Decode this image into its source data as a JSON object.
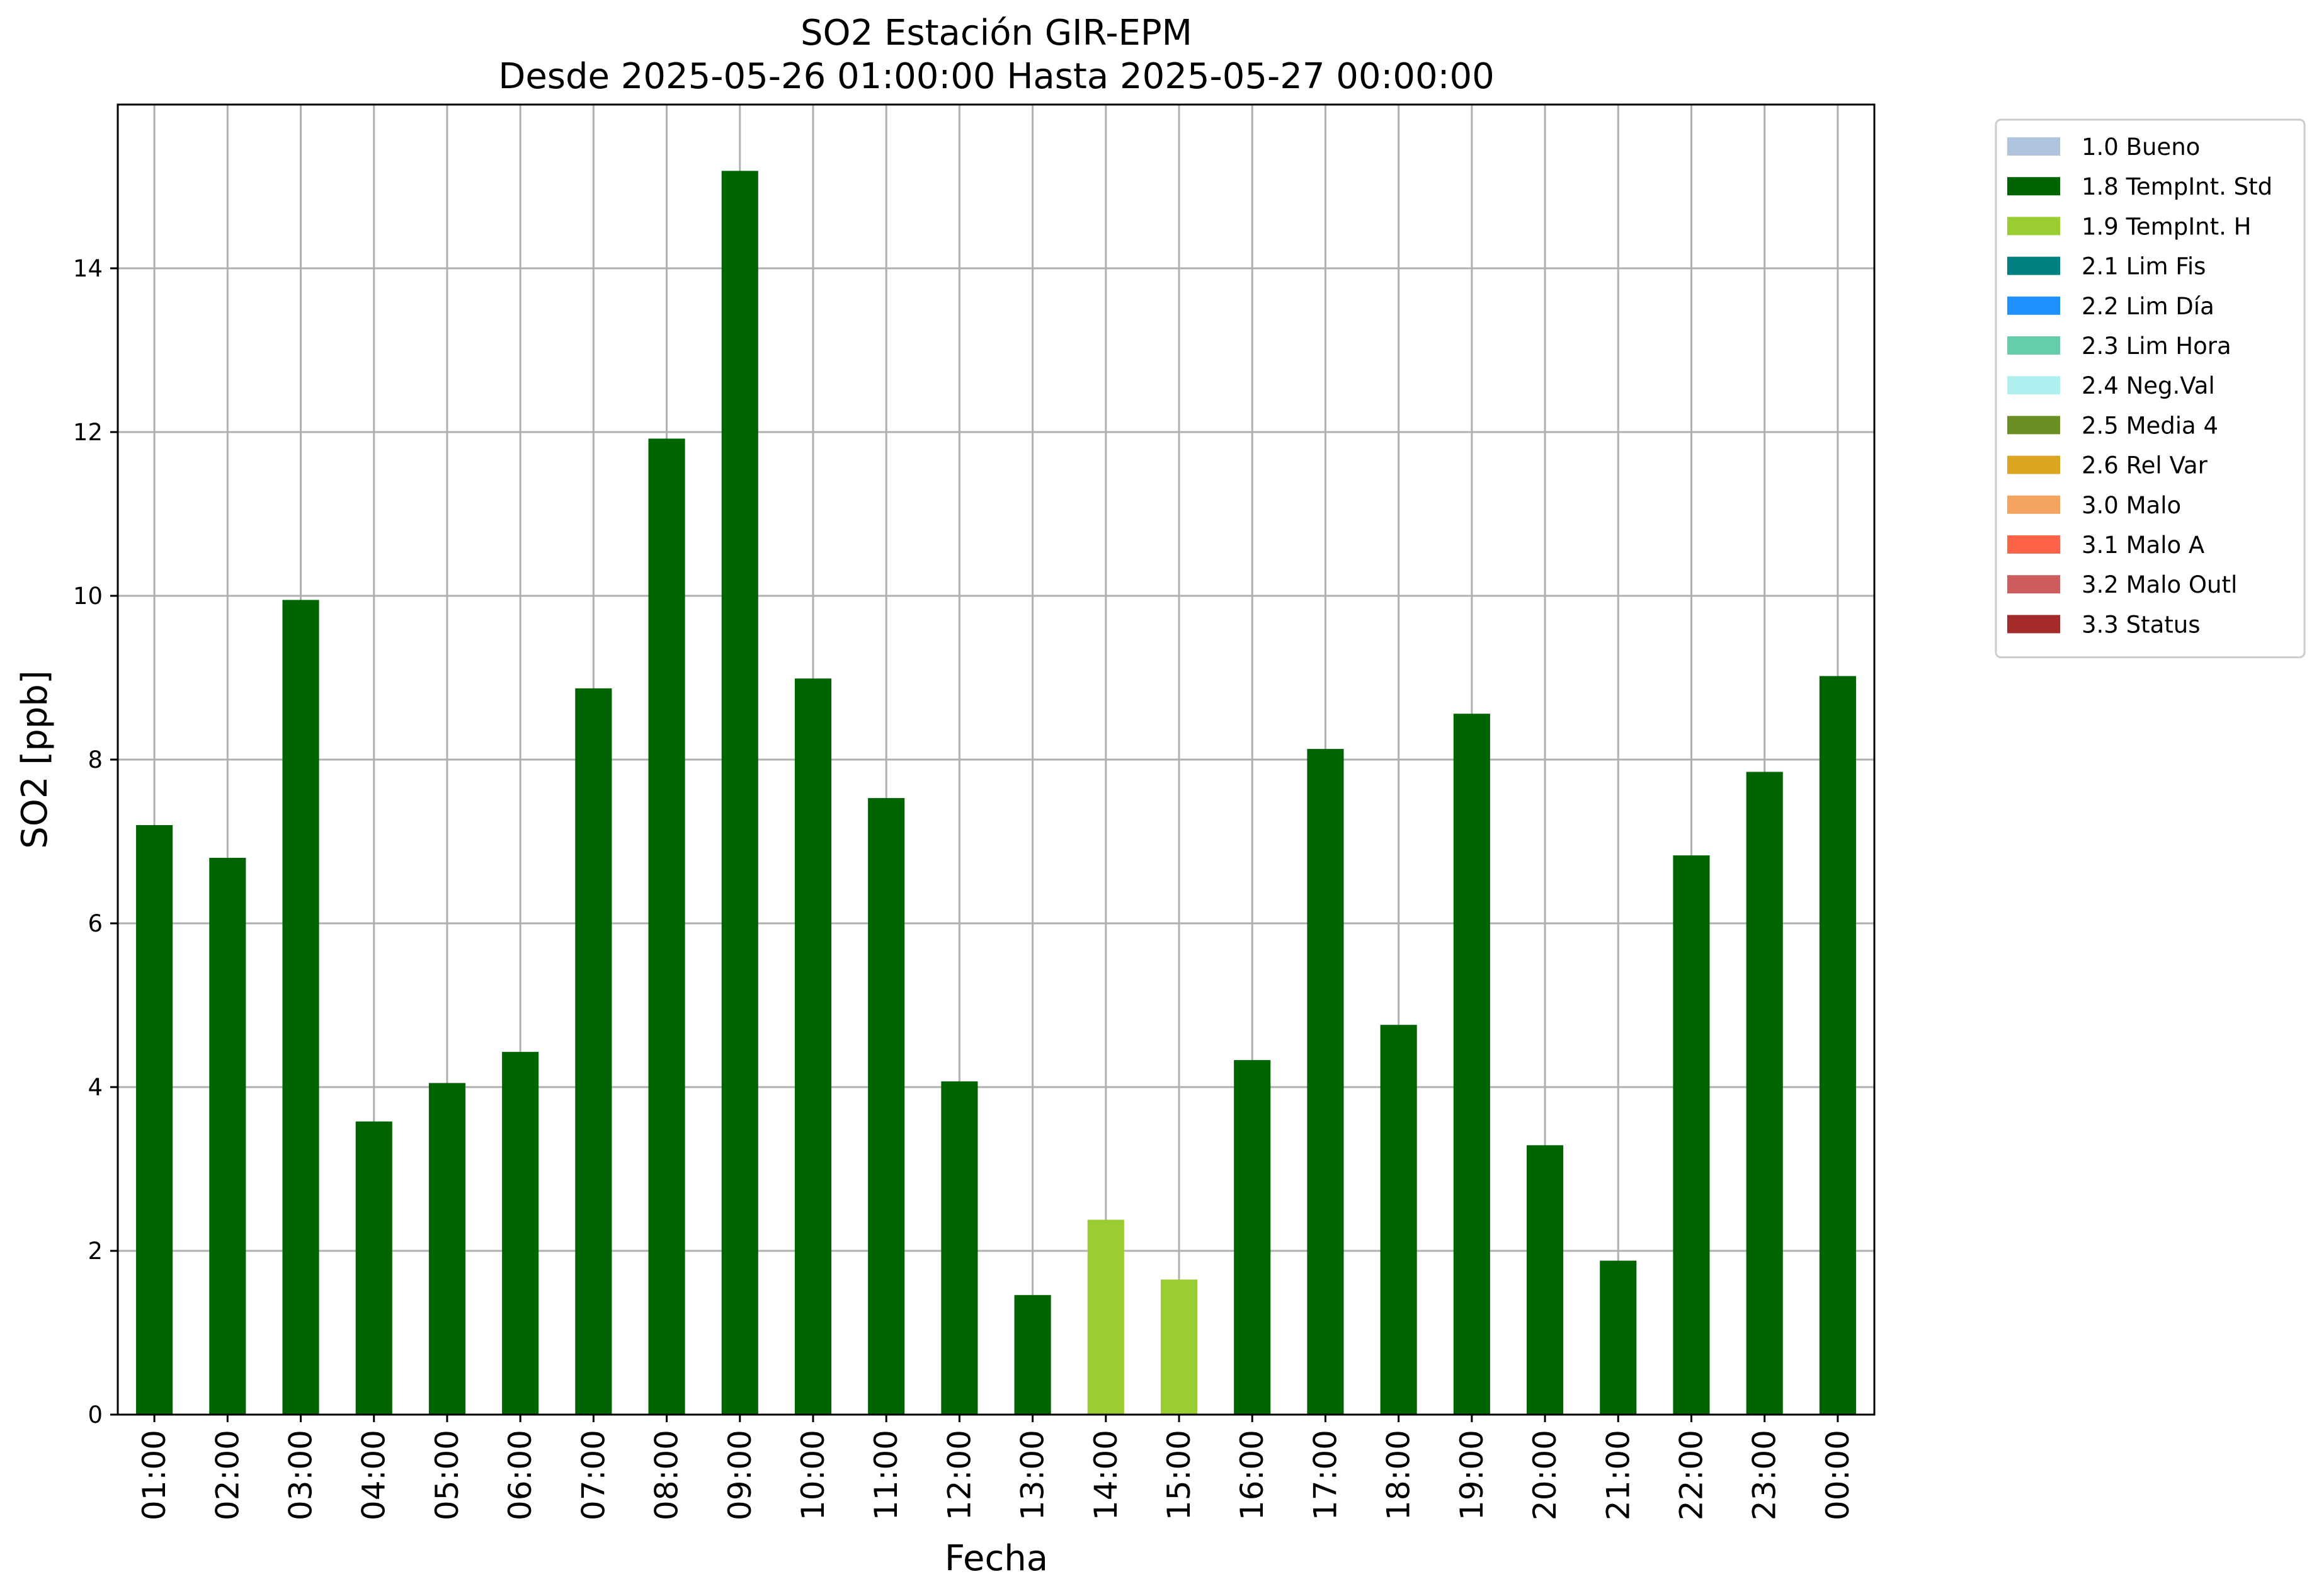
{
  "chart_data": {
    "type": "bar",
    "title": "SO2 Estación GIR-EPM",
    "subtitle": "Desde 2025-05-26 01:00:00 Hasta 2025-05-27 00:00:00",
    "xlabel": "Fecha",
    "ylabel": "SO2 [ppb]",
    "ylim": [
      0,
      16
    ],
    "yticks": [
      0,
      2,
      4,
      6,
      8,
      10,
      12,
      14
    ],
    "grid": true,
    "legend_position": "outside top-right",
    "categories": [
      "01:00",
      "02:00",
      "03:00",
      "04:00",
      "05:00",
      "06:00",
      "07:00",
      "08:00",
      "09:00",
      "10:00",
      "11:00",
      "12:00",
      "13:00",
      "14:00",
      "15:00",
      "16:00",
      "17:00",
      "18:00",
      "19:00",
      "20:00",
      "21:00",
      "22:00",
      "23:00",
      "00:00"
    ],
    "values": [
      7.2,
      6.8,
      9.95,
      3.58,
      4.05,
      4.43,
      8.87,
      11.92,
      15.19,
      8.99,
      7.53,
      4.07,
      1.46,
      2.38,
      1.65,
      4.33,
      8.13,
      4.76,
      8.56,
      3.29,
      1.88,
      6.83,
      7.85,
      9.02
    ],
    "flags": [
      "1.8",
      "1.8",
      "1.8",
      "1.8",
      "1.8",
      "1.8",
      "1.8",
      "1.8",
      "1.8",
      "1.8",
      "1.8",
      "1.8",
      "1.8",
      "1.9",
      "1.9",
      "1.8",
      "1.8",
      "1.8",
      "1.8",
      "1.8",
      "1.8",
      "1.8",
      "1.8",
      "1.8"
    ],
    "legend": [
      {
        "code": "1.0",
        "label": "1.0 Bueno",
        "color": "#b0c4de"
      },
      {
        "code": "1.8",
        "label": "1.8 TempInt. Std",
        "color": "#006400"
      },
      {
        "code": "1.9",
        "label": "1.9 TempInt. H",
        "color": "#9acd32"
      },
      {
        "code": "2.1",
        "label": "2.1 Lim Fis",
        "color": "#008080"
      },
      {
        "code": "2.2",
        "label": "2.2 Lim Día",
        "color": "#1e90ff"
      },
      {
        "code": "2.3",
        "label": "2.3 Lim Hora",
        "color": "#66cdaa"
      },
      {
        "code": "2.4",
        "label": "2.4 Neg.Val",
        "color": "#afeeee"
      },
      {
        "code": "2.5",
        "label": "2.5 Media 4",
        "color": "#6b8e23"
      },
      {
        "code": "2.6",
        "label": "2.6 Rel Var",
        "color": "#daa520"
      },
      {
        "code": "3.0",
        "label": "3.0 Malo",
        "color": "#f4a460"
      },
      {
        "code": "3.1",
        "label": "3.1 Malo A",
        "color": "#ff6347"
      },
      {
        "code": "3.2",
        "label": "3.2 Malo Outl",
        "color": "#cd5c5c"
      },
      {
        "code": "3.3",
        "label": "3.3 Status",
        "color": "#a52a2a"
      }
    ]
  }
}
